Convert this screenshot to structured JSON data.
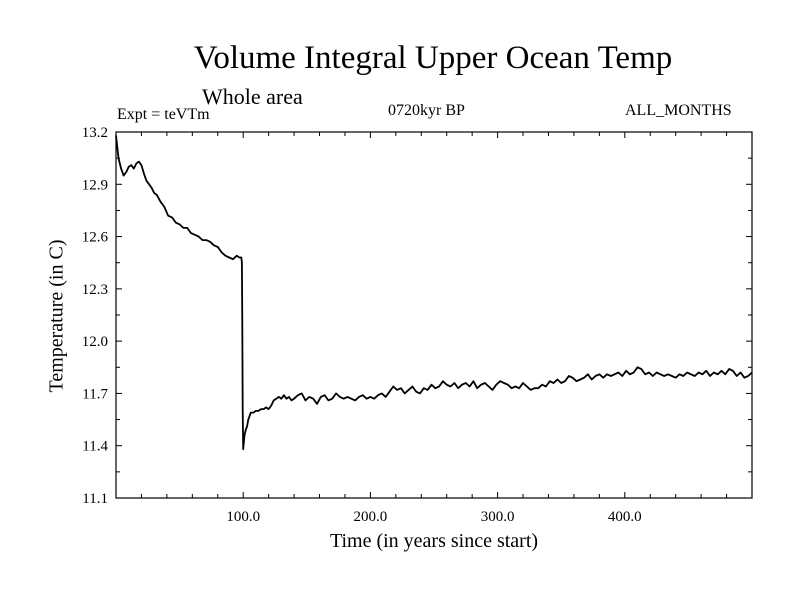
{
  "chart_data": {
    "type": "line",
    "title": "Volume Integral Upper Ocean Temp",
    "subtitle": "Whole area",
    "annotations": {
      "expt": "Expt = teVTm",
      "period": "0720kyr BP",
      "months": "ALL_MONTHS"
    },
    "xlabel": "Time (in years since start)",
    "ylabel": "Temperature (in C)",
    "xlim": [
      0,
      500
    ],
    "ylim": [
      11.1,
      13.2
    ],
    "xticks": [
      100,
      200,
      300,
      400
    ],
    "xtick_labels": [
      "100.0",
      "200.0",
      "300.0",
      "400.0"
    ],
    "yticks": [
      11.1,
      11.4,
      11.7,
      12.0,
      12.3,
      12.6,
      12.9,
      13.2
    ],
    "ytick_labels": [
      "11.1",
      "11.4",
      "11.7",
      "12.0",
      "12.3",
      "12.6",
      "12.9",
      "13.2"
    ],
    "grid": false,
    "series": [
      {
        "color": "#000000",
        "x": [
          0,
          2,
          4,
          6,
          8,
          10,
          12,
          14,
          16,
          18,
          20,
          22,
          24,
          26,
          28,
          30,
          32,
          35,
          38,
          41,
          44,
          47,
          50,
          53,
          56,
          59,
          62,
          65,
          68,
          71,
          74,
          77,
          80,
          83,
          86,
          89,
          92,
          95,
          97,
          98,
          98.5,
          99,
          99.3,
          99.6,
          100,
          101,
          102,
          103,
          104,
          106,
          108,
          110,
          112,
          114,
          116,
          118,
          120,
          122,
          124,
          126,
          128,
          130,
          132,
          134,
          136,
          138,
          140,
          143,
          146,
          149,
          152,
          155,
          158,
          161,
          164,
          167,
          170,
          173,
          176,
          179,
          182,
          185,
          188,
          191,
          194,
          197,
          200,
          203,
          206,
          209,
          212,
          215,
          218,
          221,
          224,
          227,
          230,
          233,
          236,
          239,
          242,
          245,
          248,
          251,
          254,
          257,
          260,
          263,
          266,
          269,
          272,
          275,
          278,
          281,
          284,
          287,
          290,
          293,
          296,
          299,
          302,
          305,
          308,
          311,
          314,
          317,
          320,
          323,
          326,
          329,
          332,
          335,
          338,
          341,
          344,
          347,
          350,
          353,
          356,
          359,
          362,
          365,
          368,
          371,
          374,
          377,
          380,
          383,
          386,
          389,
          392,
          395,
          398,
          401,
          404,
          407,
          410,
          413,
          416,
          419,
          422,
          425,
          428,
          431,
          434,
          437,
          440,
          443,
          446,
          449,
          452,
          455,
          458,
          461,
          464,
          467,
          470,
          473,
          476,
          479,
          482,
          485,
          488,
          491,
          494,
          497,
          500
        ],
        "y": [
          13.18,
          13.05,
          12.99,
          12.95,
          12.97,
          13.0,
          13.01,
          12.99,
          13.02,
          13.03,
          13.01,
          12.96,
          12.92,
          12.9,
          12.88,
          12.85,
          12.84,
          12.8,
          12.77,
          12.72,
          12.71,
          12.68,
          12.67,
          12.65,
          12.65,
          12.62,
          12.61,
          12.6,
          12.58,
          12.58,
          12.57,
          12.55,
          12.54,
          12.51,
          12.49,
          12.48,
          12.47,
          12.49,
          12.48,
          12.48,
          12.48,
          12.45,
          12.1,
          11.6,
          11.38,
          11.46,
          11.49,
          11.51,
          11.55,
          11.59,
          11.59,
          11.6,
          11.6,
          11.61,
          11.61,
          11.62,
          11.61,
          11.63,
          11.66,
          11.67,
          11.68,
          11.67,
          11.69,
          11.67,
          11.68,
          11.66,
          11.67,
          11.69,
          11.7,
          11.66,
          11.68,
          11.67,
          11.64,
          11.68,
          11.69,
          11.66,
          11.67,
          11.7,
          11.68,
          11.67,
          11.68,
          11.67,
          11.66,
          11.68,
          11.69,
          11.67,
          11.68,
          11.67,
          11.69,
          11.7,
          11.68,
          11.71,
          11.74,
          11.72,
          11.73,
          11.7,
          11.72,
          11.74,
          11.71,
          11.7,
          11.73,
          11.72,
          11.75,
          11.73,
          11.74,
          11.77,
          11.75,
          11.74,
          11.76,
          11.73,
          11.75,
          11.76,
          11.74,
          11.77,
          11.73,
          11.75,
          11.76,
          11.74,
          11.72,
          11.75,
          11.77,
          11.76,
          11.75,
          11.73,
          11.74,
          11.73,
          11.76,
          11.74,
          11.72,
          11.73,
          11.73,
          11.75,
          11.74,
          11.77,
          11.76,
          11.78,
          11.76,
          11.77,
          11.8,
          11.79,
          11.77,
          11.78,
          11.79,
          11.81,
          11.78,
          11.8,
          11.81,
          11.79,
          11.81,
          11.8,
          11.81,
          11.82,
          11.8,
          11.83,
          11.81,
          11.82,
          11.85,
          11.84,
          11.81,
          11.82,
          11.8,
          11.82,
          11.81,
          11.8,
          11.81,
          11.8,
          11.79,
          11.81,
          11.8,
          11.82,
          11.81,
          11.8,
          11.82,
          11.81,
          11.83,
          11.8,
          11.82,
          11.81,
          11.83,
          11.81,
          11.84,
          11.83,
          11.8,
          11.82,
          11.79,
          11.8,
          11.82
        ]
      }
    ]
  }
}
